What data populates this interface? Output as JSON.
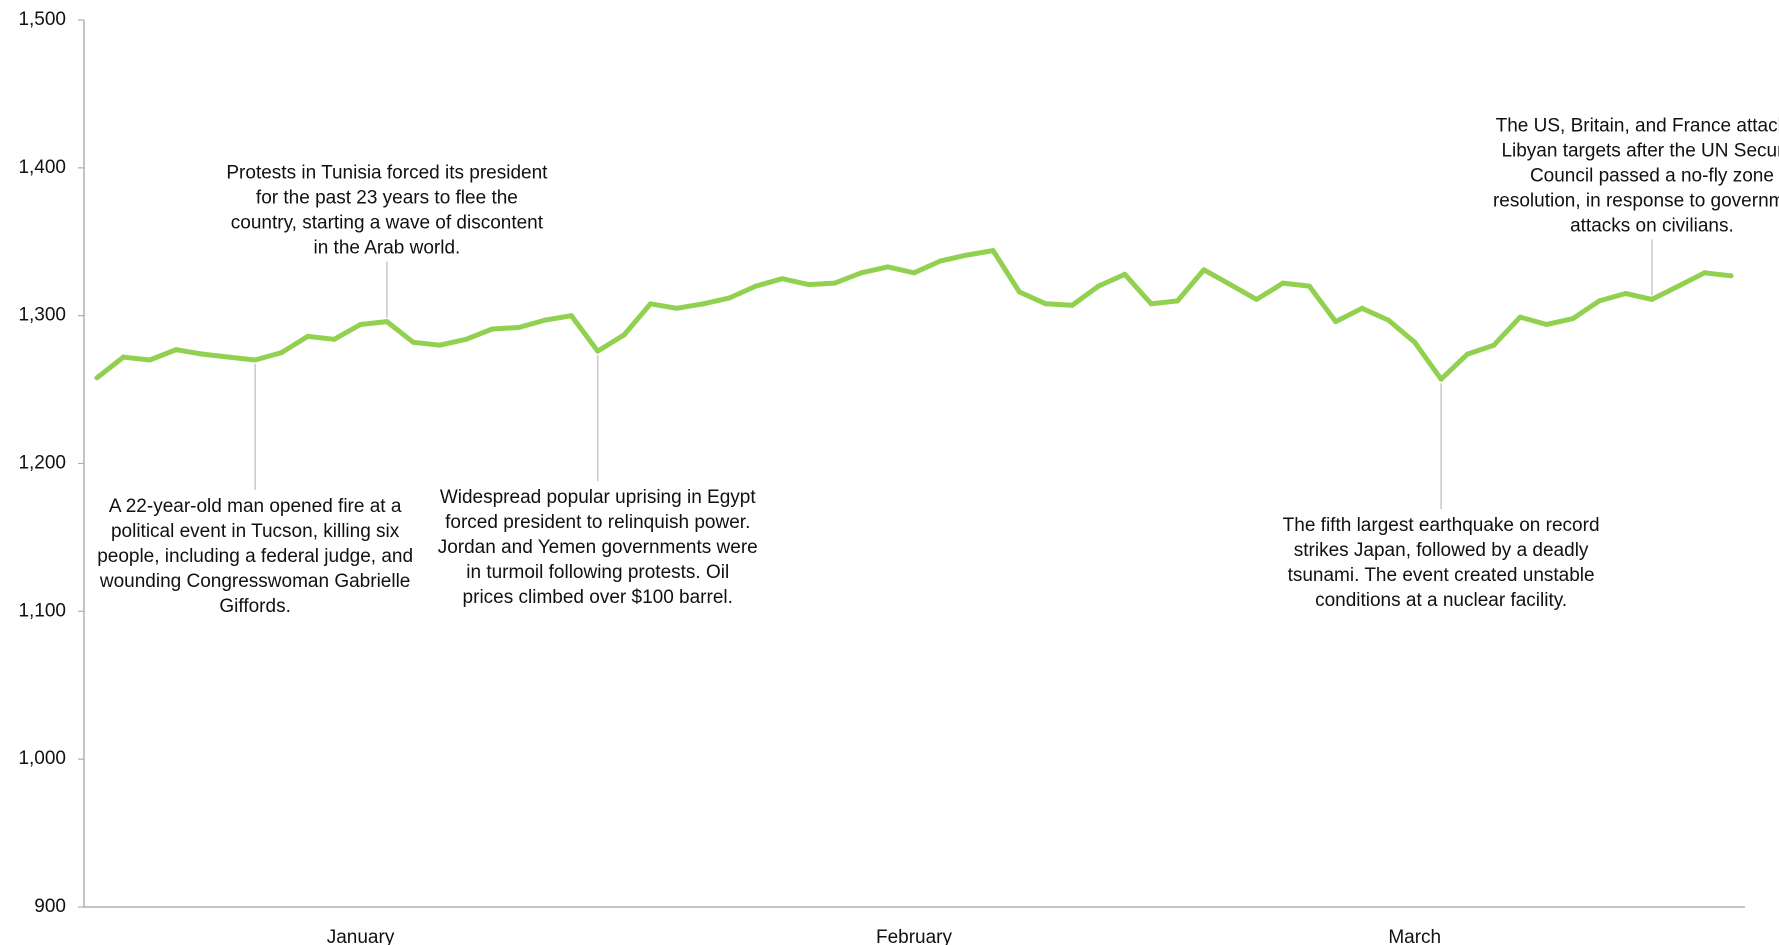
{
  "chart_data": {
    "type": "line",
    "title": "",
    "xlabel": "",
    "ylabel": "",
    "ylim": [
      900,
      1500
    ],
    "yticks": [
      900,
      1000,
      1100,
      1200,
      1300,
      1400,
      1500
    ],
    "ytick_labels": [
      "900",
      "1,000",
      "1,100",
      "1,200",
      "1,300",
      "1,400",
      "1,500"
    ],
    "xtick_labels": [
      "January",
      "February",
      "March"
    ],
    "xtick_index": [
      10,
      31,
      50
    ],
    "grid": false,
    "legend": "none",
    "series": [
      {
        "color": "#92d050",
        "values": [
          1258,
          1272,
          1270,
          1277,
          1274,
          1272,
          1270,
          1275,
          1286,
          1284,
          1294,
          1296,
          1282,
          1280,
          1284,
          1291,
          1292,
          1297,
          1300,
          1276,
          1287,
          1308,
          1305,
          1308,
          1312,
          1320,
          1325,
          1321,
          1322,
          1329,
          1333,
          1329,
          1337,
          1341,
          1344,
          1316,
          1308,
          1307,
          1320,
          1328,
          1308,
          1310,
          1331,
          1321,
          1311,
          1322,
          1320,
          1296,
          1305,
          1297,
          1282,
          1257,
          1274,
          1280,
          1299,
          1294,
          1298,
          1310,
          1315,
          1311,
          1320,
          1329,
          1327
        ]
      }
    ],
    "annotations": [
      {
        "index": 6,
        "position": "below",
        "lines": [
          "A 22-year-old man opened fire at a",
          "political event in Tucson, killing six",
          "people, including a federal judge, and",
          "wounding Congresswoman Gabrielle",
          "Giffords."
        ]
      },
      {
        "index": 11,
        "position": "above",
        "lines": [
          "Protests in Tunisia forced  its president",
          "for the past 23 years to flee the",
          "country, starting a wave of discontent",
          "in the Arab world."
        ]
      },
      {
        "index": 19,
        "position": "below",
        "lines": [
          "Widespread popular uprising in Egypt",
          "forced president to relinquish power.",
          "Jordan and Yemen governments were",
          "in turmoil following protests.  Oil",
          "prices climbed over $100 barrel."
        ]
      },
      {
        "index": 51,
        "position": "below",
        "lines": [
          "The fifth largest earthquake on record",
          "strikes Japan, followed by a deadly",
          "tsunami. The event created unstable",
          "conditions at a nuclear facility."
        ]
      },
      {
        "index": 59,
        "position": "above",
        "lines": [
          "The US, Britain, and France attacked",
          "Libyan targets after the UN Security",
          "Council passed a no-fly zone",
          "resolution, in response to government",
          "attacks on civilians."
        ]
      }
    ]
  }
}
